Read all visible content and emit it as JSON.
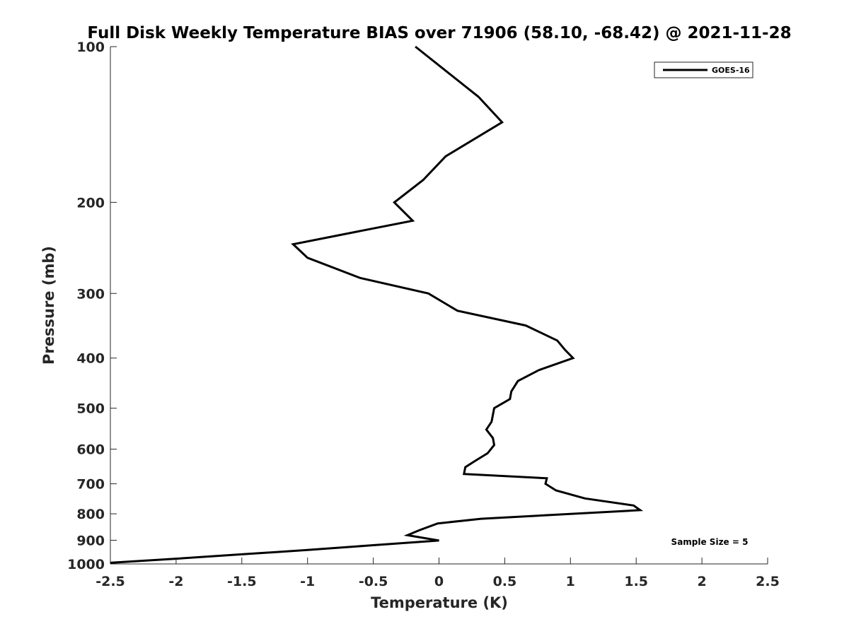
{
  "chart_data": {
    "type": "line",
    "title": "Full Disk Weekly Temperature BIAS over 71906 (58.10, -68.42) @ 2021-11-28",
    "xlabel": "Temperature (K)",
    "ylabel": "Pressure (mb)",
    "xlim": [
      -2.5,
      2.5
    ],
    "ylim": [
      100,
      1000
    ],
    "y_scale": "log",
    "y_reversed": true,
    "grid": false,
    "x_ticks": [
      -2.5,
      -2,
      -1.5,
      -1,
      -0.5,
      0,
      0.5,
      1,
      1.5,
      2,
      2.5
    ],
    "x_tick_labels": [
      "-2.5",
      "-2",
      "-1.5",
      "-1",
      "-0.5",
      "0",
      "0.5",
      "1",
      "1.5",
      "2",
      "2.5"
    ],
    "y_ticks": [
      100,
      200,
      300,
      400,
      500,
      600,
      700,
      800,
      900,
      1000
    ],
    "y_tick_labels": [
      "100",
      "200",
      "300",
      "400",
      "500",
      "600",
      "700",
      "800",
      "900",
      "1000"
    ],
    "legend_position": "top-right",
    "annotation": "Sample Size = 5",
    "series": [
      {
        "name": "GOES-16",
        "color": "#000000",
        "points": [
          [
            -0.18,
            100
          ],
          [
            0.3,
            125
          ],
          [
            0.48,
            140
          ],
          [
            0.05,
            163
          ],
          [
            -0.12,
            181
          ],
          [
            -0.34,
            200
          ],
          [
            -0.2,
            217
          ],
          [
            -1.11,
            241
          ],
          [
            -1.0,
            256
          ],
          [
            -0.6,
            280
          ],
          [
            -0.08,
            300
          ],
          [
            0.14,
            324
          ],
          [
            0.66,
            346
          ],
          [
            0.9,
            370
          ],
          [
            0.96,
            386
          ],
          [
            1.02,
            400
          ],
          [
            0.76,
            422
          ],
          [
            0.6,
            443
          ],
          [
            0.55,
            464
          ],
          [
            0.54,
            480
          ],
          [
            0.42,
            500
          ],
          [
            0.4,
            531
          ],
          [
            0.36,
            550
          ],
          [
            0.41,
            571
          ],
          [
            0.42,
            589
          ],
          [
            0.37,
            611
          ],
          [
            0.28,
            631
          ],
          [
            0.2,
            650
          ],
          [
            0.19,
            670
          ],
          [
            0.82,
            683
          ],
          [
            0.81,
            700
          ],
          [
            0.89,
            721
          ],
          [
            1.11,
            747
          ],
          [
            1.48,
            771
          ],
          [
            1.53,
            787
          ],
          [
            0.32,
            818
          ],
          [
            -0.01,
            835
          ],
          [
            -0.15,
            861
          ],
          [
            -0.24,
            880
          ],
          [
            0.0,
            901
          ],
          [
            -0.5,
            920
          ],
          [
            -1.0,
            940
          ],
          [
            -1.5,
            958
          ],
          [
            -2.0,
            977
          ],
          [
            -2.5,
            995
          ]
        ]
      }
    ]
  }
}
